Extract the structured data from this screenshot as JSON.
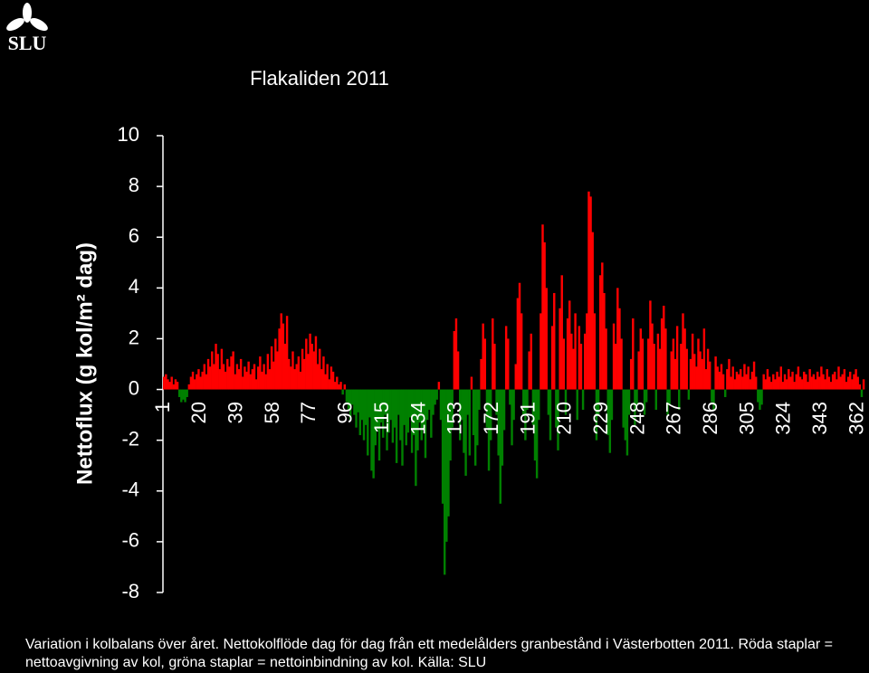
{
  "logo": "SLU",
  "caption": "Variation i kolbalans över året. Nettokolflöde dag för dag från ett medelålders granbestånd i Västerbotten 2011. Röda staplar = nettoavgivning av kol, gröna staplar = nettoinbindning av kol. Källa: SLU",
  "chart_data": {
    "type": "bar",
    "title": "Flakaliden 2011",
    "y_label": "Nettoflux (g kol/m² dag)",
    "positive_color": "#ff0000",
    "negative_color": "#008000",
    "xlim": [
      0.5,
      365.5
    ],
    "xticks": [
      1,
      20,
      39,
      58,
      77,
      96,
      115,
      134,
      153,
      172,
      191,
      210,
      229,
      248,
      267,
      286,
      305,
      324,
      343,
      362
    ],
    "ylim": [
      -8,
      10
    ],
    "yticks": [
      -8,
      -6,
      -4,
      -2,
      0,
      2,
      4,
      6,
      8,
      10
    ],
    "x": [
      1,
      2,
      3,
      4,
      5,
      6,
      7,
      8,
      9,
      10,
      11,
      12,
      13,
      14,
      15,
      16,
      17,
      18,
      19,
      20,
      21,
      22,
      23,
      24,
      25,
      26,
      27,
      28,
      29,
      30,
      31,
      32,
      33,
      34,
      35,
      36,
      37,
      38,
      39,
      40,
      41,
      42,
      43,
      44,
      45,
      46,
      47,
      48,
      49,
      50,
      51,
      52,
      53,
      54,
      55,
      56,
      57,
      58,
      59,
      60,
      61,
      62,
      63,
      64,
      65,
      66,
      67,
      68,
      69,
      70,
      71,
      72,
      73,
      74,
      75,
      76,
      77,
      78,
      79,
      80,
      81,
      82,
      83,
      84,
      85,
      86,
      87,
      88,
      89,
      90,
      91,
      92,
      93,
      94,
      95,
      96,
      97,
      98,
      99,
      100,
      101,
      102,
      103,
      104,
      105,
      106,
      107,
      108,
      109,
      110,
      111,
      112,
      113,
      114,
      115,
      116,
      117,
      118,
      119,
      120,
      121,
      122,
      123,
      124,
      125,
      126,
      127,
      128,
      129,
      130,
      131,
      132,
      133,
      134,
      135,
      136,
      137,
      138,
      139,
      140,
      141,
      142,
      143,
      144,
      145,
      146,
      147,
      148,
      149,
      150,
      151,
      152,
      153,
      154,
      155,
      156,
      157,
      158,
      159,
      160,
      161,
      162,
      163,
      164,
      165,
      166,
      167,
      168,
      169,
      170,
      171,
      172,
      173,
      174,
      175,
      176,
      177,
      178,
      179,
      180,
      181,
      182,
      183,
      184,
      185,
      186,
      187,
      188,
      189,
      190,
      191,
      192,
      193,
      194,
      195,
      196,
      197,
      198,
      199,
      200,
      201,
      202,
      203,
      204,
      205,
      206,
      207,
      208,
      209,
      210,
      211,
      212,
      213,
      214,
      215,
      216,
      217,
      218,
      219,
      220,
      221,
      222,
      223,
      224,
      225,
      226,
      227,
      228,
      229,
      230,
      231,
      232,
      233,
      234,
      235,
      236,
      237,
      238,
      239,
      240,
      241,
      242,
      243,
      244,
      245,
      246,
      247,
      248,
      249,
      250,
      251,
      252,
      253,
      254,
      255,
      256,
      257,
      258,
      259,
      260,
      261,
      262,
      263,
      264,
      265,
      266,
      267,
      268,
      269,
      270,
      271,
      272,
      273,
      274,
      275,
      276,
      277,
      278,
      279,
      280,
      281,
      282,
      283,
      284,
      285,
      286,
      287,
      288,
      289,
      290,
      291,
      292,
      293,
      294,
      295,
      296,
      297,
      298,
      299,
      300,
      301,
      302,
      303,
      304,
      305,
      306,
      307,
      308,
      309,
      310,
      311,
      312,
      313,
      314,
      315,
      316,
      317,
      318,
      319,
      320,
      321,
      322,
      323,
      324,
      325,
      326,
      327,
      328,
      329,
      330,
      331,
      332,
      333,
      334,
      335,
      336,
      337,
      338,
      339,
      340,
      341,
      342,
      343,
      344,
      345,
      346,
      347,
      348,
      349,
      350,
      351,
      352,
      353,
      354,
      355,
      356,
      357,
      358,
      359,
      360,
      361,
      362,
      363,
      364,
      365
    ],
    "values": [
      0.5,
      0.6,
      0.4,
      0.3,
      0.5,
      0.2,
      0.4,
      0.3,
      -0.3,
      -0.5,
      -0.4,
      -0.5,
      -0.3,
      0.2,
      0.5,
      0.7,
      0.4,
      0.6,
      0.8,
      0.5,
      0.7,
      1.0,
      0.6,
      1.2,
      0.9,
      1.5,
      1.0,
      1.8,
      1.4,
      0.8,
      1.6,
      1.0,
      0.7,
      1.2,
      0.9,
      1.3,
      1.5,
      0.6,
      1.0,
      0.8,
      1.2,
      0.5,
      0.9,
      0.7,
      1.1,
      0.6,
      0.8,
      1.0,
      0.4,
      0.9,
      1.3,
      0.7,
      1.0,
      0.6,
      1.4,
      0.8,
      1.7,
      1.1,
      2.0,
      1.5,
      2.4,
      3.0,
      2.6,
      1.8,
      2.9,
      1.2,
      0.9,
      1.5,
      0.8,
      1.0,
      1.3,
      0.7,
      1.6,
      1.2,
      2.0,
      1.4,
      2.2,
      1.8,
      1.5,
      2.1,
      1.0,
      1.6,
      0.8,
      1.3,
      0.6,
      1.0,
      0.4,
      0.9,
      0.7,
      0.3,
      0.5,
      0.2,
      0.3,
      -0.2,
      0.2,
      -0.5,
      -0.8,
      -1.2,
      -0.6,
      -1.0,
      -1.5,
      -0.9,
      -1.8,
      -1.2,
      -2.0,
      -1.4,
      -2.6,
      -1.1,
      -3.2,
      -3.5,
      -2.2,
      -1.6,
      -2.8,
      -1.3,
      -1.9,
      -1.0,
      -2.4,
      -1.7,
      -1.2,
      -2.1,
      -1.5,
      -2.9,
      -1.0,
      -2.0,
      -3.0,
      -1.4,
      -2.2,
      -1.7,
      -1.1,
      -2.5,
      -1.8,
      -3.8,
      -2.4,
      -1.3,
      -2.0,
      -1.6,
      -2.7,
      -1.2,
      -0.8,
      -1.9,
      -1.0,
      -0.6,
      -0.4,
      0.3,
      -1.2,
      -4.5,
      -7.3,
      -6.0,
      -5.0,
      -2.8,
      -1.5,
      2.3,
      2.8,
      1.5,
      -2.0,
      -1.2,
      -2.5,
      -3.4,
      -1.0,
      -2.6,
      0.5,
      -1.8,
      -3.0,
      -2.2,
      -0.8,
      1.2,
      2.6,
      2.0,
      -1.5,
      -3.2,
      -2.0,
      2.8,
      1.8,
      -1.0,
      -2.6,
      -4.5,
      -3.0,
      -1.6,
      2.5,
      2.0,
      -0.6,
      -2.2,
      -1.2,
      1.0,
      3.6,
      4.2,
      3.0,
      -1.0,
      -2.0,
      -0.8,
      1.5,
      2.2,
      -1.4,
      -2.8,
      -3.5,
      -1.2,
      3.0,
      6.5,
      5.8,
      4.0,
      -1.0,
      -2.0,
      2.5,
      3.8,
      -1.5,
      -2.4,
      3.2,
      4.5,
      2.0,
      -1.0,
      2.8,
      3.5,
      2.2,
      1.6,
      3.0,
      -1.2,
      2.5,
      1.8,
      -0.8,
      2.2,
      3.0,
      7.8,
      7.6,
      6.2,
      3.0,
      -2.0,
      -1.0,
      4.5,
      5.0,
      3.8,
      2.4,
      -1.8,
      -2.5,
      -1.2,
      2.6,
      1.8,
      4.0,
      3.2,
      2.0,
      -1.5,
      -2.0,
      -2.6,
      -1.0,
      1.2,
      2.8,
      -1.4,
      -0.6,
      1.5,
      2.4,
      2.0,
      -1.0,
      -0.5,
      2.0,
      3.5,
      2.6,
      1.8,
      -0.8,
      2.2,
      1.6,
      2.8,
      3.3,
      2.4,
      -1.0,
      -0.6,
      1.5,
      2.0,
      1.2,
      2.5,
      -0.8,
      1.8,
      3.0,
      2.4,
      1.6,
      -0.4,
      1.2,
      2.2,
      1.4,
      0.9,
      2.0,
      1.5,
      1.2,
      2.4,
      0.8,
      1.6,
      1.1,
      -0.5,
      -0.8,
      1.3,
      0.9,
      0.7,
      1.0,
      0.6,
      -0.3,
      0.8,
      1.2,
      0.5,
      0.9,
      0.4,
      0.7,
      0.6,
      0.8,
      0.5,
      1.0,
      0.6,
      0.9,
      0.4,
      0.7,
      1.1,
      0.5,
      -0.5,
      -0.8,
      -0.6,
      0.6,
      0.4,
      0.8,
      0.5,
      0.3,
      0.6,
      0.4,
      0.7,
      0.5,
      0.9,
      0.3,
      0.6,
      0.4,
      0.8,
      0.5,
      0.7,
      0.3,
      0.6,
      0.9,
      0.5,
      0.4,
      0.7,
      0.6,
      0.3,
      0.8,
      0.5,
      0.6,
      0.4,
      0.7,
      0.5,
      0.9,
      0.6,
      0.4,
      0.8,
      0.5,
      0.3,
      0.6,
      0.7,
      0.4,
      0.9,
      0.5,
      0.6,
      0.8,
      0.3,
      0.5,
      0.7,
      0.4,
      0.6,
      0.8,
      0.5,
      0.2,
      -0.3,
      0.4
    ]
  }
}
